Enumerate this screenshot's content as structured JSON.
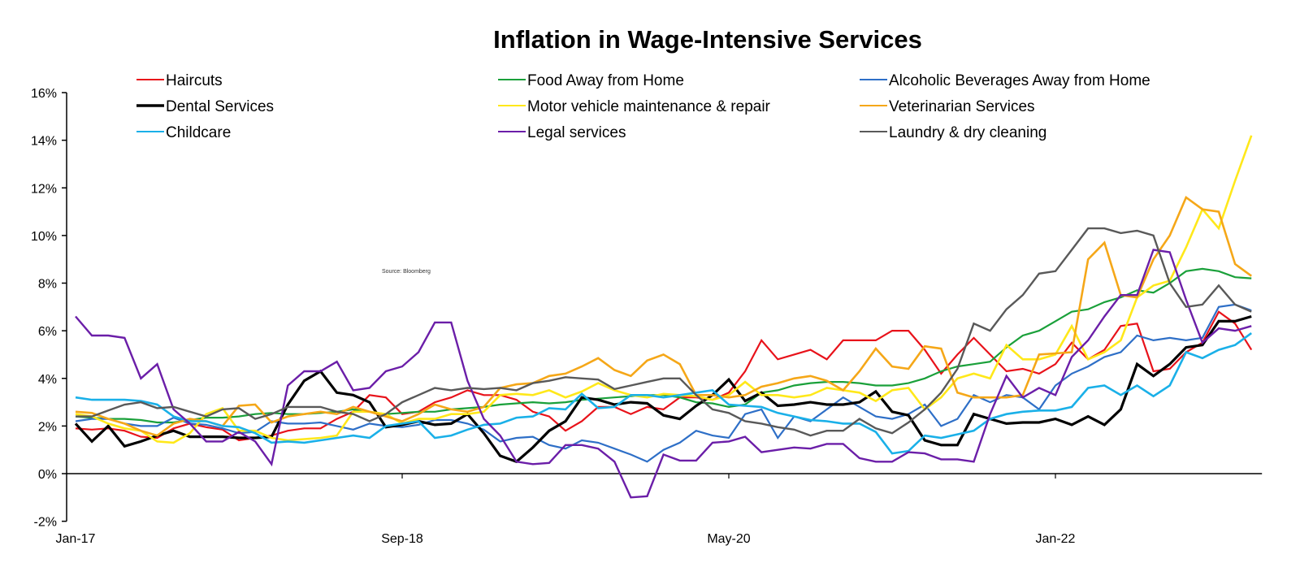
{
  "chart_data": {
    "type": "line",
    "title": "Inflation in Wage-Intensive Services",
    "annotation": "Source: Bloomberg",
    "xlabel": "",
    "ylabel": "",
    "ylim": [
      -2,
      16
    ],
    "y_ticks": [
      -2,
      0,
      2,
      4,
      6,
      8,
      10,
      12,
      14,
      16
    ],
    "y_tick_labels": [
      "-2%",
      "0%",
      "2%",
      "4%",
      "6%",
      "8%",
      "10%",
      "12%",
      "14%",
      "16%"
    ],
    "x_start": "Jan-17",
    "x_end": "Jan-23",
    "x_frequency": "monthly",
    "x_tick_labels": [
      {
        "label": "Jan-17",
        "index": 0
      },
      {
        "label": "Sep-18",
        "index": 20
      },
      {
        "label": "May-20",
        "index": 40
      },
      {
        "label": "Jan-22",
        "index": 60
      }
    ],
    "grid": false,
    "legend": "top",
    "series": [
      {
        "name": "Haircuts",
        "color": "#e8121a",
        "width": 2.2,
        "values": [
          1.9,
          1.85,
          1.9,
          1.8,
          1.55,
          1.5,
          1.9,
          2.1,
          1.95,
          1.85,
          1.4,
          1.5,
          1.6,
          1.8,
          1.9,
          1.9,
          2.3,
          2.6,
          3.3,
          3.2,
          2.5,
          2.6,
          3.0,
          3.2,
          3.5,
          3.3,
          3.3,
          3.1,
          2.6,
          2.4,
          1.8,
          2.2,
          2.8,
          2.8,
          2.5,
          2.8,
          2.7,
          3.2,
          3.2,
          3.1,
          3.4,
          4.3,
          5.6,
          4.8,
          5.0,
          5.2,
          4.8,
          5.6,
          5.6,
          5.6,
          6.0,
          6.0,
          5.2,
          4.2,
          5.0,
          5.7,
          5.0,
          4.3,
          4.4,
          4.2,
          4.6,
          5.5,
          4.8,
          5.2,
          6.2,
          6.3,
          4.3,
          4.4,
          5.1,
          5.5,
          6.8,
          6.3,
          5.2
        ]
      },
      {
        "name": "Food Away from Home",
        "color": "#1aa03a",
        "width": 2.2,
        "values": [
          2.4,
          2.35,
          2.3,
          2.3,
          2.25,
          2.15,
          2.15,
          2.25,
          2.35,
          2.35,
          2.4,
          2.5,
          2.55,
          2.5,
          2.5,
          2.55,
          2.6,
          2.7,
          2.6,
          2.5,
          2.55,
          2.6,
          2.6,
          2.7,
          2.75,
          2.8,
          2.9,
          2.95,
          3.0,
          2.95,
          3.0,
          3.1,
          3.15,
          3.2,
          3.25,
          3.3,
          3.3,
          3.2,
          3.0,
          2.95,
          2.8,
          2.9,
          3.4,
          3.5,
          3.7,
          3.8,
          3.85,
          3.85,
          3.8,
          3.7,
          3.7,
          3.8,
          4.0,
          4.3,
          4.5,
          4.6,
          4.7,
          5.3,
          5.8,
          6.0,
          6.4,
          6.8,
          6.9,
          7.2,
          7.4,
          7.7,
          7.6,
          8.0,
          8.5,
          8.6,
          8.5,
          8.25,
          8.2
        ]
      },
      {
        "name": "Alcoholic Beverages Away from Home",
        "color": "#2e6fc7",
        "width": 2.2,
        "values": [
          2.2,
          2.3,
          2.3,
          2.1,
          2.0,
          2.0,
          2.35,
          2.1,
          2.05,
          1.9,
          1.7,
          1.75,
          2.2,
          2.1,
          2.1,
          2.15,
          2.0,
          1.85,
          2.1,
          2.0,
          1.95,
          2.05,
          2.25,
          2.25,
          2.1,
          1.85,
          1.35,
          1.5,
          1.55,
          1.2,
          1.05,
          1.4,
          1.3,
          1.05,
          0.8,
          0.5,
          1.0,
          1.3,
          1.8,
          1.6,
          1.5,
          2.5,
          2.7,
          1.5,
          2.4,
          2.2,
          2.7,
          3.2,
          2.8,
          2.4,
          2.3,
          2.5,
          2.9,
          2.0,
          2.3,
          3.3,
          3.0,
          3.3,
          3.2,
          2.7,
          3.7,
          4.2,
          4.5,
          4.9,
          5.1,
          5.8,
          5.6,
          5.7,
          5.6,
          5.7,
          7.0,
          7.1,
          6.85
        ]
      },
      {
        "name": "Dental Services",
        "color": "#000000",
        "width": 3.2,
        "values": [
          2.1,
          1.35,
          2.0,
          1.15,
          1.35,
          1.6,
          1.8,
          1.55,
          1.55,
          1.55,
          1.5,
          1.5,
          1.55,
          2.9,
          3.9,
          4.3,
          3.4,
          3.3,
          3.0,
          1.95,
          2.05,
          2.2,
          2.05,
          2.1,
          2.5,
          1.7,
          0.75,
          0.5,
          1.1,
          1.8,
          2.2,
          3.2,
          3.1,
          2.9,
          3.0,
          2.95,
          2.45,
          2.3,
          2.85,
          3.3,
          3.95,
          3.05,
          3.4,
          2.85,
          2.9,
          3.0,
          2.9,
          2.9,
          3.0,
          3.45,
          2.6,
          2.45,
          1.4,
          1.2,
          1.2,
          2.5,
          2.3,
          2.1,
          2.15,
          2.15,
          2.3,
          2.05,
          2.4,
          2.05,
          2.7,
          4.6,
          4.1,
          4.6,
          5.3,
          5.4,
          6.4,
          6.4,
          6.6
        ]
      },
      {
        "name": "Motor vehicle maintenance & repair",
        "color": "#ffe81a",
        "width": 2.6,
        "values": [
          2.5,
          2.4,
          2.1,
          1.9,
          1.8,
          1.35,
          1.3,
          1.7,
          2.5,
          2.75,
          1.8,
          1.8,
          1.5,
          1.4,
          1.45,
          1.5,
          1.6,
          2.6,
          2.6,
          2.5,
          2.1,
          2.3,
          2.3,
          2.5,
          2.5,
          2.6,
          3.3,
          3.35,
          3.3,
          3.5,
          3.2,
          3.45,
          3.8,
          3.5,
          3.3,
          3.2,
          3.35,
          3.3,
          3.25,
          3.1,
          3.3,
          3.85,
          3.3,
          3.3,
          3.2,
          3.3,
          3.6,
          3.5,
          3.4,
          3.05,
          3.5,
          3.6,
          2.7,
          3.2,
          4.0,
          4.2,
          4.0,
          5.4,
          4.8,
          4.8,
          5.0,
          6.2,
          4.8,
          5.1,
          5.6,
          7.4,
          7.9,
          8.1,
          9.5,
          11.1,
          10.3,
          12.3,
          14.2
        ]
      },
      {
        "name": "Veterinarian Services",
        "color": "#f5a718",
        "width": 2.6,
        "values": [
          2.6,
          2.55,
          2.3,
          2.1,
          1.8,
          1.6,
          2.1,
          2.3,
          2.2,
          2.0,
          2.85,
          2.9,
          2.15,
          2.4,
          2.5,
          2.6,
          2.5,
          2.8,
          2.6,
          2.4,
          2.2,
          2.5,
          2.9,
          2.7,
          2.6,
          2.8,
          3.6,
          3.75,
          3.8,
          4.1,
          4.2,
          4.5,
          4.85,
          4.35,
          4.1,
          4.75,
          5.0,
          4.6,
          3.3,
          3.3,
          3.2,
          3.3,
          3.65,
          3.8,
          4.0,
          4.1,
          3.9,
          3.5,
          4.3,
          5.25,
          4.5,
          4.4,
          5.35,
          5.25,
          3.4,
          3.2,
          3.2,
          3.2,
          3.3,
          5.0,
          5.05,
          5.1,
          9.0,
          9.7,
          7.5,
          7.4,
          9.0,
          10.0,
          11.6,
          11.1,
          11.0,
          8.8,
          8.3
        ]
      },
      {
        "name": "Childcare",
        "color": "#1ab0e8",
        "width": 2.6,
        "values": [
          3.2,
          3.1,
          3.1,
          3.1,
          3.05,
          2.9,
          2.4,
          2.2,
          2.2,
          2.0,
          1.95,
          1.7,
          1.3,
          1.35,
          1.3,
          1.4,
          1.5,
          1.6,
          1.5,
          2.0,
          2.1,
          2.2,
          1.5,
          1.6,
          1.85,
          2.05,
          2.1,
          2.35,
          2.4,
          2.75,
          2.7,
          3.35,
          2.75,
          2.8,
          3.3,
          3.3,
          3.2,
          3.3,
          3.4,
          3.5,
          2.9,
          2.85,
          2.8,
          2.55,
          2.4,
          2.25,
          2.2,
          2.1,
          2.1,
          1.75,
          0.85,
          0.95,
          1.6,
          1.5,
          1.65,
          1.8,
          2.3,
          2.5,
          2.6,
          2.65,
          2.65,
          2.8,
          3.6,
          3.7,
          3.3,
          3.7,
          3.25,
          3.7,
          5.1,
          4.85,
          5.2,
          5.4,
          5.9
        ]
      },
      {
        "name": "Legal services",
        "color": "#6b1ea8",
        "width": 2.4,
        "values": [
          6.6,
          5.8,
          5.8,
          5.7,
          4.0,
          4.6,
          2.7,
          2.1,
          1.35,
          1.35,
          1.75,
          1.35,
          0.4,
          3.7,
          4.3,
          4.3,
          4.7,
          3.5,
          3.6,
          4.3,
          4.5,
          5.1,
          6.35,
          6.35,
          3.9,
          2.3,
          1.6,
          0.5,
          0.4,
          0.45,
          1.2,
          1.2,
          1.05,
          0.5,
          -1.0,
          -0.95,
          0.8,
          0.55,
          0.55,
          1.3,
          1.35,
          1.55,
          0.9,
          1.0,
          1.1,
          1.05,
          1.25,
          1.25,
          0.65,
          0.5,
          0.5,
          0.9,
          0.85,
          0.6,
          0.6,
          0.5,
          2.5,
          4.1,
          3.2,
          3.6,
          3.3,
          4.9,
          5.6,
          6.6,
          7.5,
          7.5,
          9.4,
          9.3,
          7.3,
          5.5,
          6.1,
          6.0,
          6.2
        ]
      },
      {
        "name": "Laundry & dry cleaning",
        "color": "#595959",
        "width": 2.4,
        "values": [
          2.4,
          2.4,
          2.65,
          2.9,
          3.0,
          2.75,
          2.8,
          2.6,
          2.4,
          2.7,
          2.75,
          2.3,
          2.5,
          2.8,
          2.8,
          2.8,
          2.6,
          2.5,
          2.2,
          2.5,
          3.0,
          3.3,
          3.6,
          3.5,
          3.6,
          3.55,
          3.6,
          3.5,
          3.8,
          3.9,
          4.05,
          4.0,
          3.95,
          3.55,
          3.7,
          3.85,
          4.0,
          4.0,
          3.3,
          2.7,
          2.55,
          2.2,
          2.1,
          1.95,
          1.85,
          1.6,
          1.8,
          1.8,
          2.3,
          1.9,
          1.7,
          2.15,
          2.7,
          3.4,
          4.4,
          6.3,
          6.0,
          6.9,
          7.5,
          8.4,
          8.5,
          9.4,
          10.3,
          10.3,
          10.1,
          10.2,
          10.0,
          8.0,
          7.0,
          7.1,
          7.9,
          7.1,
          6.8
        ]
      }
    ]
  }
}
